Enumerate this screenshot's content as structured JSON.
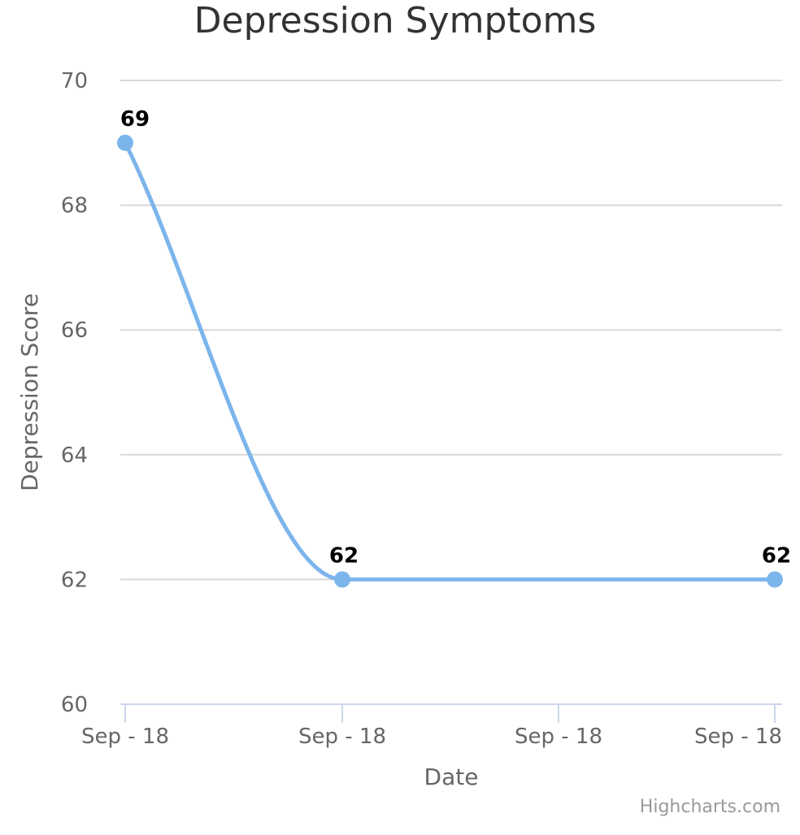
{
  "chart_data": {
    "type": "line",
    "title": "Depression Symptoms",
    "xlabel": "Date",
    "ylabel": "Depression Score",
    "ylim": [
      60,
      70
    ],
    "y_ticks": [
      60,
      62,
      64,
      66,
      68,
      70
    ],
    "x_tick_labels": [
      "Sep - 18",
      "Sep - 18",
      "Sep - 18",
      "Sep - 18"
    ],
    "x_range": [
      0,
      3
    ],
    "grid": true,
    "series": [
      {
        "color": "#7cb5ec",
        "points": [
          {
            "x": 0,
            "y": 69,
            "label": "69"
          },
          {
            "x": 1,
            "y": 62,
            "label": "62"
          },
          {
            "x": 3,
            "y": 62,
            "label": "62"
          }
        ]
      }
    ],
    "credits": "Highcharts.com"
  }
}
